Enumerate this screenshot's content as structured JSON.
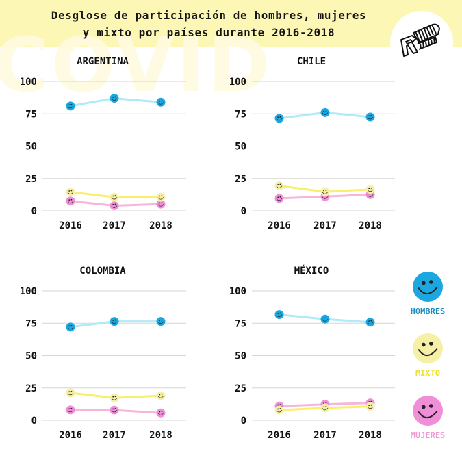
{
  "title": {
    "line1": "Desglose de participación de hombres, mujeres",
    "line2": "y mixto por países durante 2016-2018"
  },
  "logo_icon": "r-roller-logo-icon",
  "background_watermark": "COVID",
  "colors": {
    "hombres_marker": "#1ba7df",
    "hombres_line": "#aeeaf8",
    "hombres_label": "#1b8fbd",
    "mixto_marker": "#f6f0a6",
    "mixto_line": "#f9ef6a",
    "mixto_label": "#f2e02e",
    "mujeres_marker": "#f08fd8",
    "mujeres_line": "#f5b6da",
    "mujeres_label": "#f09ad6",
    "header_band": "#fdf7b5"
  },
  "legend": [
    {
      "key": "hombres",
      "label": "HOMBRES",
      "icon": "smiley-face-icon"
    },
    {
      "key": "mixto",
      "label": "MIXTO",
      "icon": "smiley-face-icon"
    },
    {
      "key": "mujeres",
      "label": "MUJERES",
      "icon": "smiley-face-icon"
    }
  ],
  "chart_data": [
    {
      "type": "line",
      "title": "ARGENTINA",
      "categories": [
        "2016",
        "2017",
        "2018"
      ],
      "yticks": [
        "0",
        "25",
        "50",
        "75",
        "100"
      ],
      "ylim": [
        0,
        100
      ],
      "grid": true,
      "series": [
        {
          "name": "HOMBRES",
          "key": "hombres",
          "values": [
            81,
            87,
            84
          ]
        },
        {
          "name": "MIXTO",
          "key": "mixto",
          "values": [
            14.5,
            10.5,
            10.5
          ]
        },
        {
          "name": "MUJERES",
          "key": "mujeres",
          "values": [
            7.5,
            4,
            5.2
          ]
        }
      ]
    },
    {
      "type": "line",
      "title": "CHILE",
      "categories": [
        "2016",
        "2017",
        "2018"
      ],
      "yticks": [
        "0",
        "25",
        "50",
        "75",
        "100"
      ],
      "ylim": [
        0,
        100
      ],
      "grid": true,
      "series": [
        {
          "name": "HOMBRES",
          "key": "hombres",
          "values": [
            71.5,
            76,
            72.5
          ]
        },
        {
          "name": "MIXTO",
          "key": "mixto",
          "values": [
            19.3,
            14.7,
            16.5
          ]
        },
        {
          "name": "MUJERES",
          "key": "mujeres",
          "values": [
            9.6,
            11,
            12.5
          ]
        }
      ]
    },
    {
      "type": "line",
      "title": "COLOMBIA",
      "categories": [
        "2016",
        "2017",
        "2018"
      ],
      "yticks": [
        "0",
        "25",
        "50",
        "75",
        "100"
      ],
      "ylim": [
        0,
        100
      ],
      "grid": true,
      "series": [
        {
          "name": "HOMBRES",
          "key": "hombres",
          "values": [
            72,
            76.4,
            76.4
          ]
        },
        {
          "name": "MIXTO",
          "key": "mixto",
          "values": [
            21.2,
            17.3,
            19
          ]
        },
        {
          "name": "MUJERES",
          "key": "mujeres",
          "values": [
            8,
            7.9,
            5.7
          ]
        }
      ]
    },
    {
      "type": "line",
      "title": "MÉXICO",
      "categories": [
        "2016",
        "2017",
        "2018"
      ],
      "yticks": [
        "0",
        "25",
        "50",
        "75",
        "100"
      ],
      "ylim": [
        0,
        100
      ],
      "grid": true,
      "series": [
        {
          "name": "HOMBRES",
          "key": "hombres",
          "values": [
            81.7,
            78.2,
            75.8
          ]
        },
        {
          "name": "MIXTO",
          "key": "mixto",
          "values": [
            7.9,
            9.6,
            10.7
          ]
        },
        {
          "name": "MUJERES",
          "key": "mujeres",
          "values": [
            11,
            12.3,
            13.4
          ]
        }
      ]
    }
  ]
}
